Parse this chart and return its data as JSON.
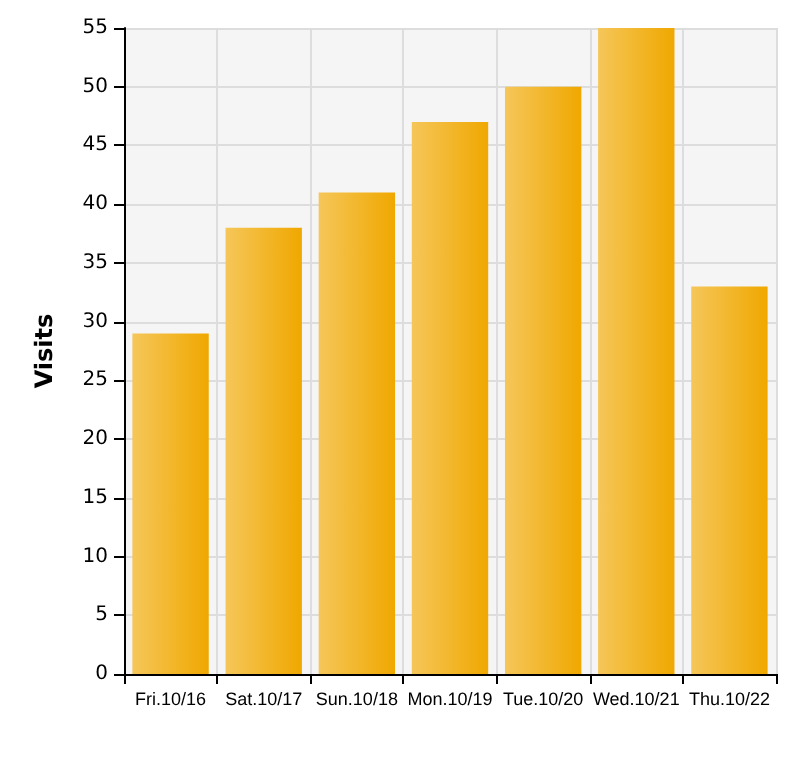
{
  "chart_data": {
    "type": "bar",
    "ylabel": "Visits",
    "categories": [
      "Fri.10/16",
      "Sat.10/17",
      "Sun.10/18",
      "Mon.10/19",
      "Tue.10/20",
      "Wed.10/21",
      "Thu.10/22"
    ],
    "values": [
      29,
      38,
      41,
      47,
      50,
      55,
      33
    ],
    "color": "#f0a800",
    "ylim": [
      0,
      55
    ],
    "yticks": [
      0,
      5,
      10,
      15,
      20,
      25,
      30,
      35,
      40,
      45,
      50,
      55
    ],
    "grid": true
  }
}
